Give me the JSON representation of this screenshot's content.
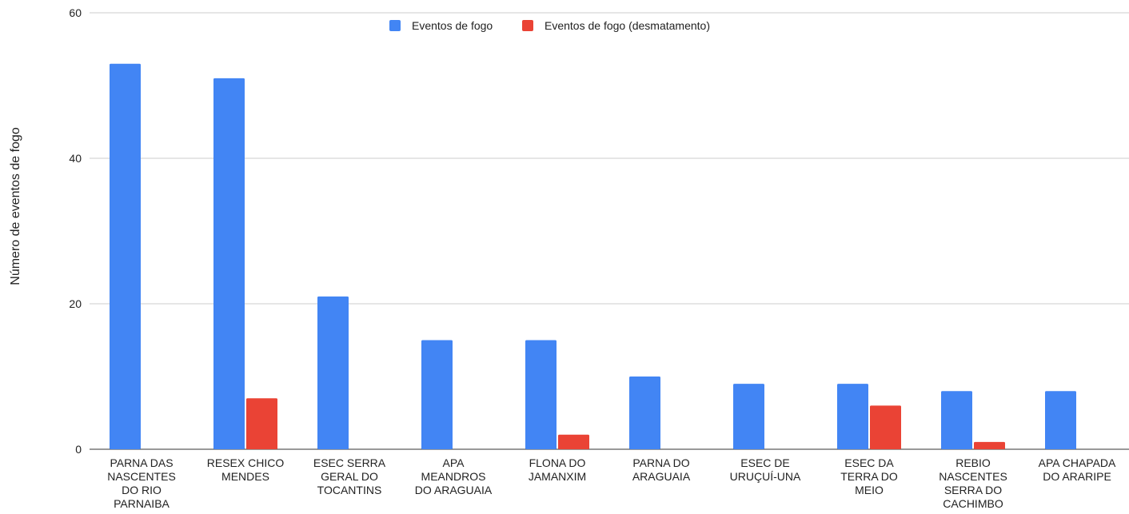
{
  "chart_data": {
    "type": "bar",
    "title": "",
    "xlabel": "",
    "ylabel": "Número de eventos de fogo",
    "ylim": [
      0,
      60
    ],
    "yticks": [
      0,
      20,
      40,
      60
    ],
    "grid": true,
    "legend_position": "top-center",
    "categories": [
      "PARNA DAS NASCENTES DO RIO PARNAIBA",
      "RESEX CHICO MENDES",
      "ESEC SERRA GERAL DO TOCANTINS",
      "APA MEANDROS DO ARAGUAIA",
      "FLONA DO JAMANXIM",
      "PARNA DO ARAGUAIA",
      "ESEC DE URUÇUÍ-UNA",
      "ESEC DA TERRA DO MEIO",
      "REBIO NASCENTES SERRA DO CACHIMBO",
      "APA CHAPADA DO ARARIPE"
    ],
    "category_lines": [
      [
        "PARNA DAS",
        "NASCENTES",
        "DO RIO",
        "PARNAIBA"
      ],
      [
        "RESEX CHICO",
        "MENDES"
      ],
      [
        "ESEC SERRA",
        "GERAL DO",
        "TOCANTINS"
      ],
      [
        "APA",
        "MEANDROS",
        "DO ARAGUAIA"
      ],
      [
        "FLONA DO",
        "JAMANXIM"
      ],
      [
        "PARNA DO",
        "ARAGUAIA"
      ],
      [
        "ESEC DE",
        "URUÇUÍ-UNA"
      ],
      [
        "ESEC DA",
        "TERRA DO",
        "MEIO"
      ],
      [
        "REBIO",
        "NASCENTES",
        "SERRA DO",
        "CACHIMBO"
      ],
      [
        "APA CHAPADA",
        "DO ARARIPE"
      ]
    ],
    "series": [
      {
        "name": "Eventos de fogo",
        "color": "#4285f4",
        "values": [
          53,
          51,
          21,
          15,
          15,
          10,
          9,
          9,
          8,
          8
        ]
      },
      {
        "name": "Eventos de fogo (desmatamento)",
        "color": "#ea4335",
        "values": [
          0,
          7,
          0,
          0,
          2,
          0,
          0,
          6,
          1,
          0
        ]
      }
    ]
  }
}
